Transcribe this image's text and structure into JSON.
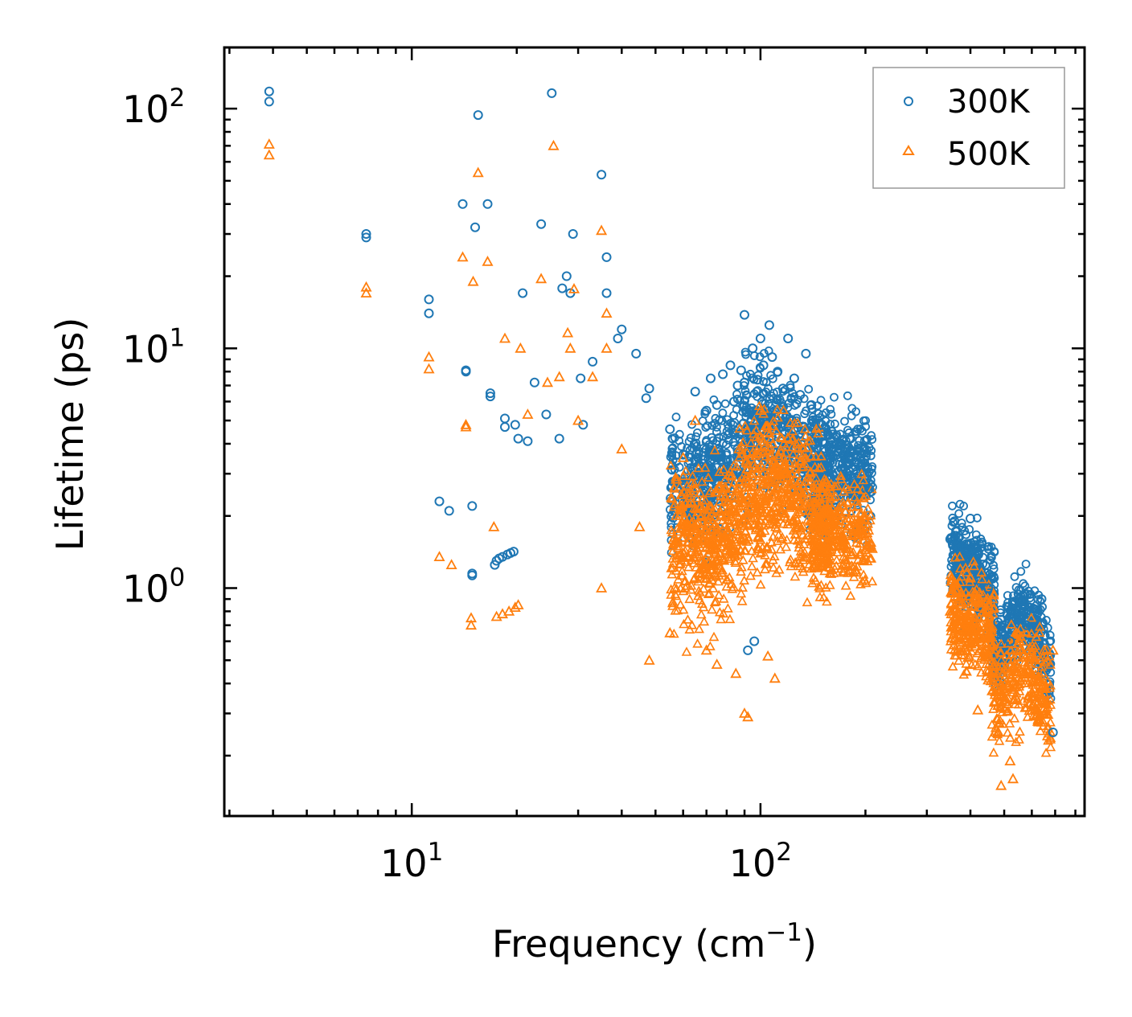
{
  "chart_data": {
    "type": "scatter",
    "title": "",
    "xlabel": "Frequency (cm",
    "xlabel_superscript": "−1",
    "xlabel_suffix": ")",
    "ylabel": "Lifetime (ps)",
    "xscale": "log",
    "yscale": "log",
    "xlim": [
      2.9,
      850
    ],
    "ylim": [
      0.112,
      180
    ],
    "grid": false,
    "legend_position": "top-right",
    "x_major_ticks": [
      {
        "value": 10,
        "base": "10",
        "exp": "1"
      },
      {
        "value": 100,
        "base": "10",
        "exp": "2"
      }
    ],
    "y_major_ticks": [
      {
        "value": 1,
        "base": "10",
        "exp": "0"
      },
      {
        "value": 10,
        "base": "10",
        "exp": "1"
      },
      {
        "value": 100,
        "base": "10",
        "exp": "2"
      }
    ],
    "series": [
      {
        "name": "300K",
        "color": "#1f77b4",
        "marker": "circle",
        "points": [
          [
            3.9,
            118
          ],
          [
            3.9,
            107
          ],
          [
            7.4,
            30
          ],
          [
            7.4,
            29
          ],
          [
            11.2,
            16
          ],
          [
            11.2,
            14
          ],
          [
            12,
            2.3
          ],
          [
            12.8,
            2.1
          ],
          [
            14,
            40
          ],
          [
            14.3,
            8.1
          ],
          [
            14.3,
            8.0
          ],
          [
            14.9,
            2.2
          ],
          [
            14.9,
            1.15
          ],
          [
            14.9,
            1.13
          ],
          [
            15.2,
            32
          ],
          [
            15.5,
            94
          ],
          [
            16.5,
            40
          ],
          [
            16.8,
            6.5
          ],
          [
            16.8,
            6.3
          ],
          [
            17.3,
            1.25
          ],
          [
            17.5,
            1.3
          ],
          [
            17.8,
            1.33
          ],
          [
            18.2,
            1.35
          ],
          [
            18.5,
            5.1
          ],
          [
            18.5,
            4.7
          ],
          [
            18.8,
            1.38
          ],
          [
            19.2,
            1.4
          ],
          [
            19.6,
            1.42
          ],
          [
            19.8,
            4.8
          ],
          [
            20.2,
            4.2
          ],
          [
            20.8,
            17
          ],
          [
            21.5,
            4.1
          ],
          [
            22.5,
            7.2
          ],
          [
            23.5,
            33
          ],
          [
            24.3,
            5.3
          ],
          [
            25.2,
            116
          ],
          [
            26.5,
            4.2
          ],
          [
            27,
            17.8
          ],
          [
            27.8,
            20
          ],
          [
            28.5,
            17
          ],
          [
            29,
            30
          ],
          [
            30.5,
            7.5
          ],
          [
            31,
            4.8
          ],
          [
            33,
            8.8
          ],
          [
            35,
            53
          ],
          [
            36.2,
            24
          ],
          [
            36.2,
            17
          ],
          [
            39,
            11
          ],
          [
            40,
            12
          ],
          [
            44,
            9.5
          ],
          [
            47,
            6.2
          ],
          [
            48,
            6.8
          ],
          [
            55,
            4.6
          ],
          [
            60,
            3.6
          ],
          [
            65,
            6.6
          ],
          [
            70,
            5.5
          ],
          [
            72,
            7.5
          ],
          [
            75,
            5.8
          ],
          [
            78,
            7.8
          ],
          [
            82,
            8.5
          ],
          [
            84,
            6.0
          ],
          [
            86,
            7.0
          ],
          [
            88,
            8.1
          ],
          [
            90,
            7.2
          ],
          [
            90,
            13.8
          ],
          [
            95,
            10
          ],
          [
            98,
            7.4
          ],
          [
            100,
            11
          ],
          [
            102,
            8.5
          ],
          [
            106,
            12.5
          ],
          [
            108,
            9.2
          ],
          [
            112,
            8.0
          ],
          [
            116,
            6.8
          ],
          [
            120,
            11
          ],
          [
            125,
            7.5
          ],
          [
            130,
            6.4
          ],
          [
            135,
            9.5
          ],
          [
            140,
            5.8
          ],
          [
            150,
            4.8
          ],
          [
            160,
            4.5
          ],
          [
            175,
            3.8
          ],
          [
            190,
            3.6
          ],
          [
            205,
            2.6
          ],
          [
            92,
            0.55
          ],
          [
            96,
            0.6
          ],
          [
            350,
            1.6
          ],
          [
            360,
            1.9
          ],
          [
            380,
            1.5
          ],
          [
            400,
            1.95
          ],
          [
            420,
            1.4
          ],
          [
            450,
            1.0
          ],
          [
            480,
            0.72
          ],
          [
            520,
            0.6
          ],
          [
            550,
            0.75
          ],
          [
            580,
            0.7
          ],
          [
            620,
            0.8
          ],
          [
            640,
            0.9
          ],
          [
            690,
            0.25
          ]
        ]
      },
      {
        "name": "500K",
        "color": "#ff7f0e",
        "marker": "triangle",
        "points": [
          [
            3.9,
            71
          ],
          [
            3.9,
            64
          ],
          [
            7.4,
            18
          ],
          [
            7.4,
            17
          ],
          [
            11.2,
            9.2
          ],
          [
            11.2,
            8.2
          ],
          [
            12,
            1.35
          ],
          [
            13,
            1.25
          ],
          [
            14,
            24
          ],
          [
            14.3,
            4.8
          ],
          [
            14.3,
            4.7
          ],
          [
            14.8,
            0.75
          ],
          [
            14.8,
            0.7
          ],
          [
            15,
            19
          ],
          [
            15.5,
            54
          ],
          [
            16.5,
            23
          ],
          [
            17.2,
            1.8
          ],
          [
            17.5,
            0.76
          ],
          [
            18.2,
            0.78
          ],
          [
            18.5,
            11
          ],
          [
            19,
            0.8
          ],
          [
            19.8,
            0.83
          ],
          [
            20.2,
            0.85
          ],
          [
            20.5,
            10
          ],
          [
            21.5,
            5.3
          ],
          [
            23.5,
            19.5
          ],
          [
            24.5,
            7.2
          ],
          [
            25.5,
            70
          ],
          [
            26.5,
            7.6
          ],
          [
            28,
            11.6
          ],
          [
            28.5,
            10
          ],
          [
            29.2,
            17.7
          ],
          [
            30,
            5.0
          ],
          [
            33,
            7.6
          ],
          [
            35,
            31
          ],
          [
            35,
            1.0
          ],
          [
            36.2,
            14
          ],
          [
            36.2,
            10
          ],
          [
            40,
            3.8
          ],
          [
            45,
            1.8
          ],
          [
            48,
            0.5
          ],
          [
            55,
            0.65
          ],
          [
            60,
            3.5
          ],
          [
            65,
            5.0
          ],
          [
            70,
            0.55
          ],
          [
            75,
            0.48
          ],
          [
            85,
            0.44
          ],
          [
            90,
            0.3
          ],
          [
            92,
            0.29
          ],
          [
            100,
            5.5
          ],
          [
            105,
            0.52
          ],
          [
            110,
            0.42
          ],
          [
            115,
            2.5
          ],
          [
            120,
            4.2
          ],
          [
            130,
            2.2
          ],
          [
            140,
            1.6
          ],
          [
            150,
            1.8
          ],
          [
            165,
            2.0
          ],
          [
            175,
            1.9
          ],
          [
            190,
            2.2
          ],
          [
            205,
            1.5
          ],
          [
            350,
            0.8
          ],
          [
            360,
            1.05
          ],
          [
            380,
            0.55
          ],
          [
            400,
            1.1
          ],
          [
            420,
            0.31
          ],
          [
            450,
            0.45
          ],
          [
            480,
            0.25
          ],
          [
            490,
            0.15
          ],
          [
            520,
            0.19
          ],
          [
            530,
            0.16
          ],
          [
            560,
            0.45
          ],
          [
            600,
            0.35
          ],
          [
            650,
            0.55
          ],
          [
            690,
            0.55
          ]
        ]
      }
    ]
  }
}
